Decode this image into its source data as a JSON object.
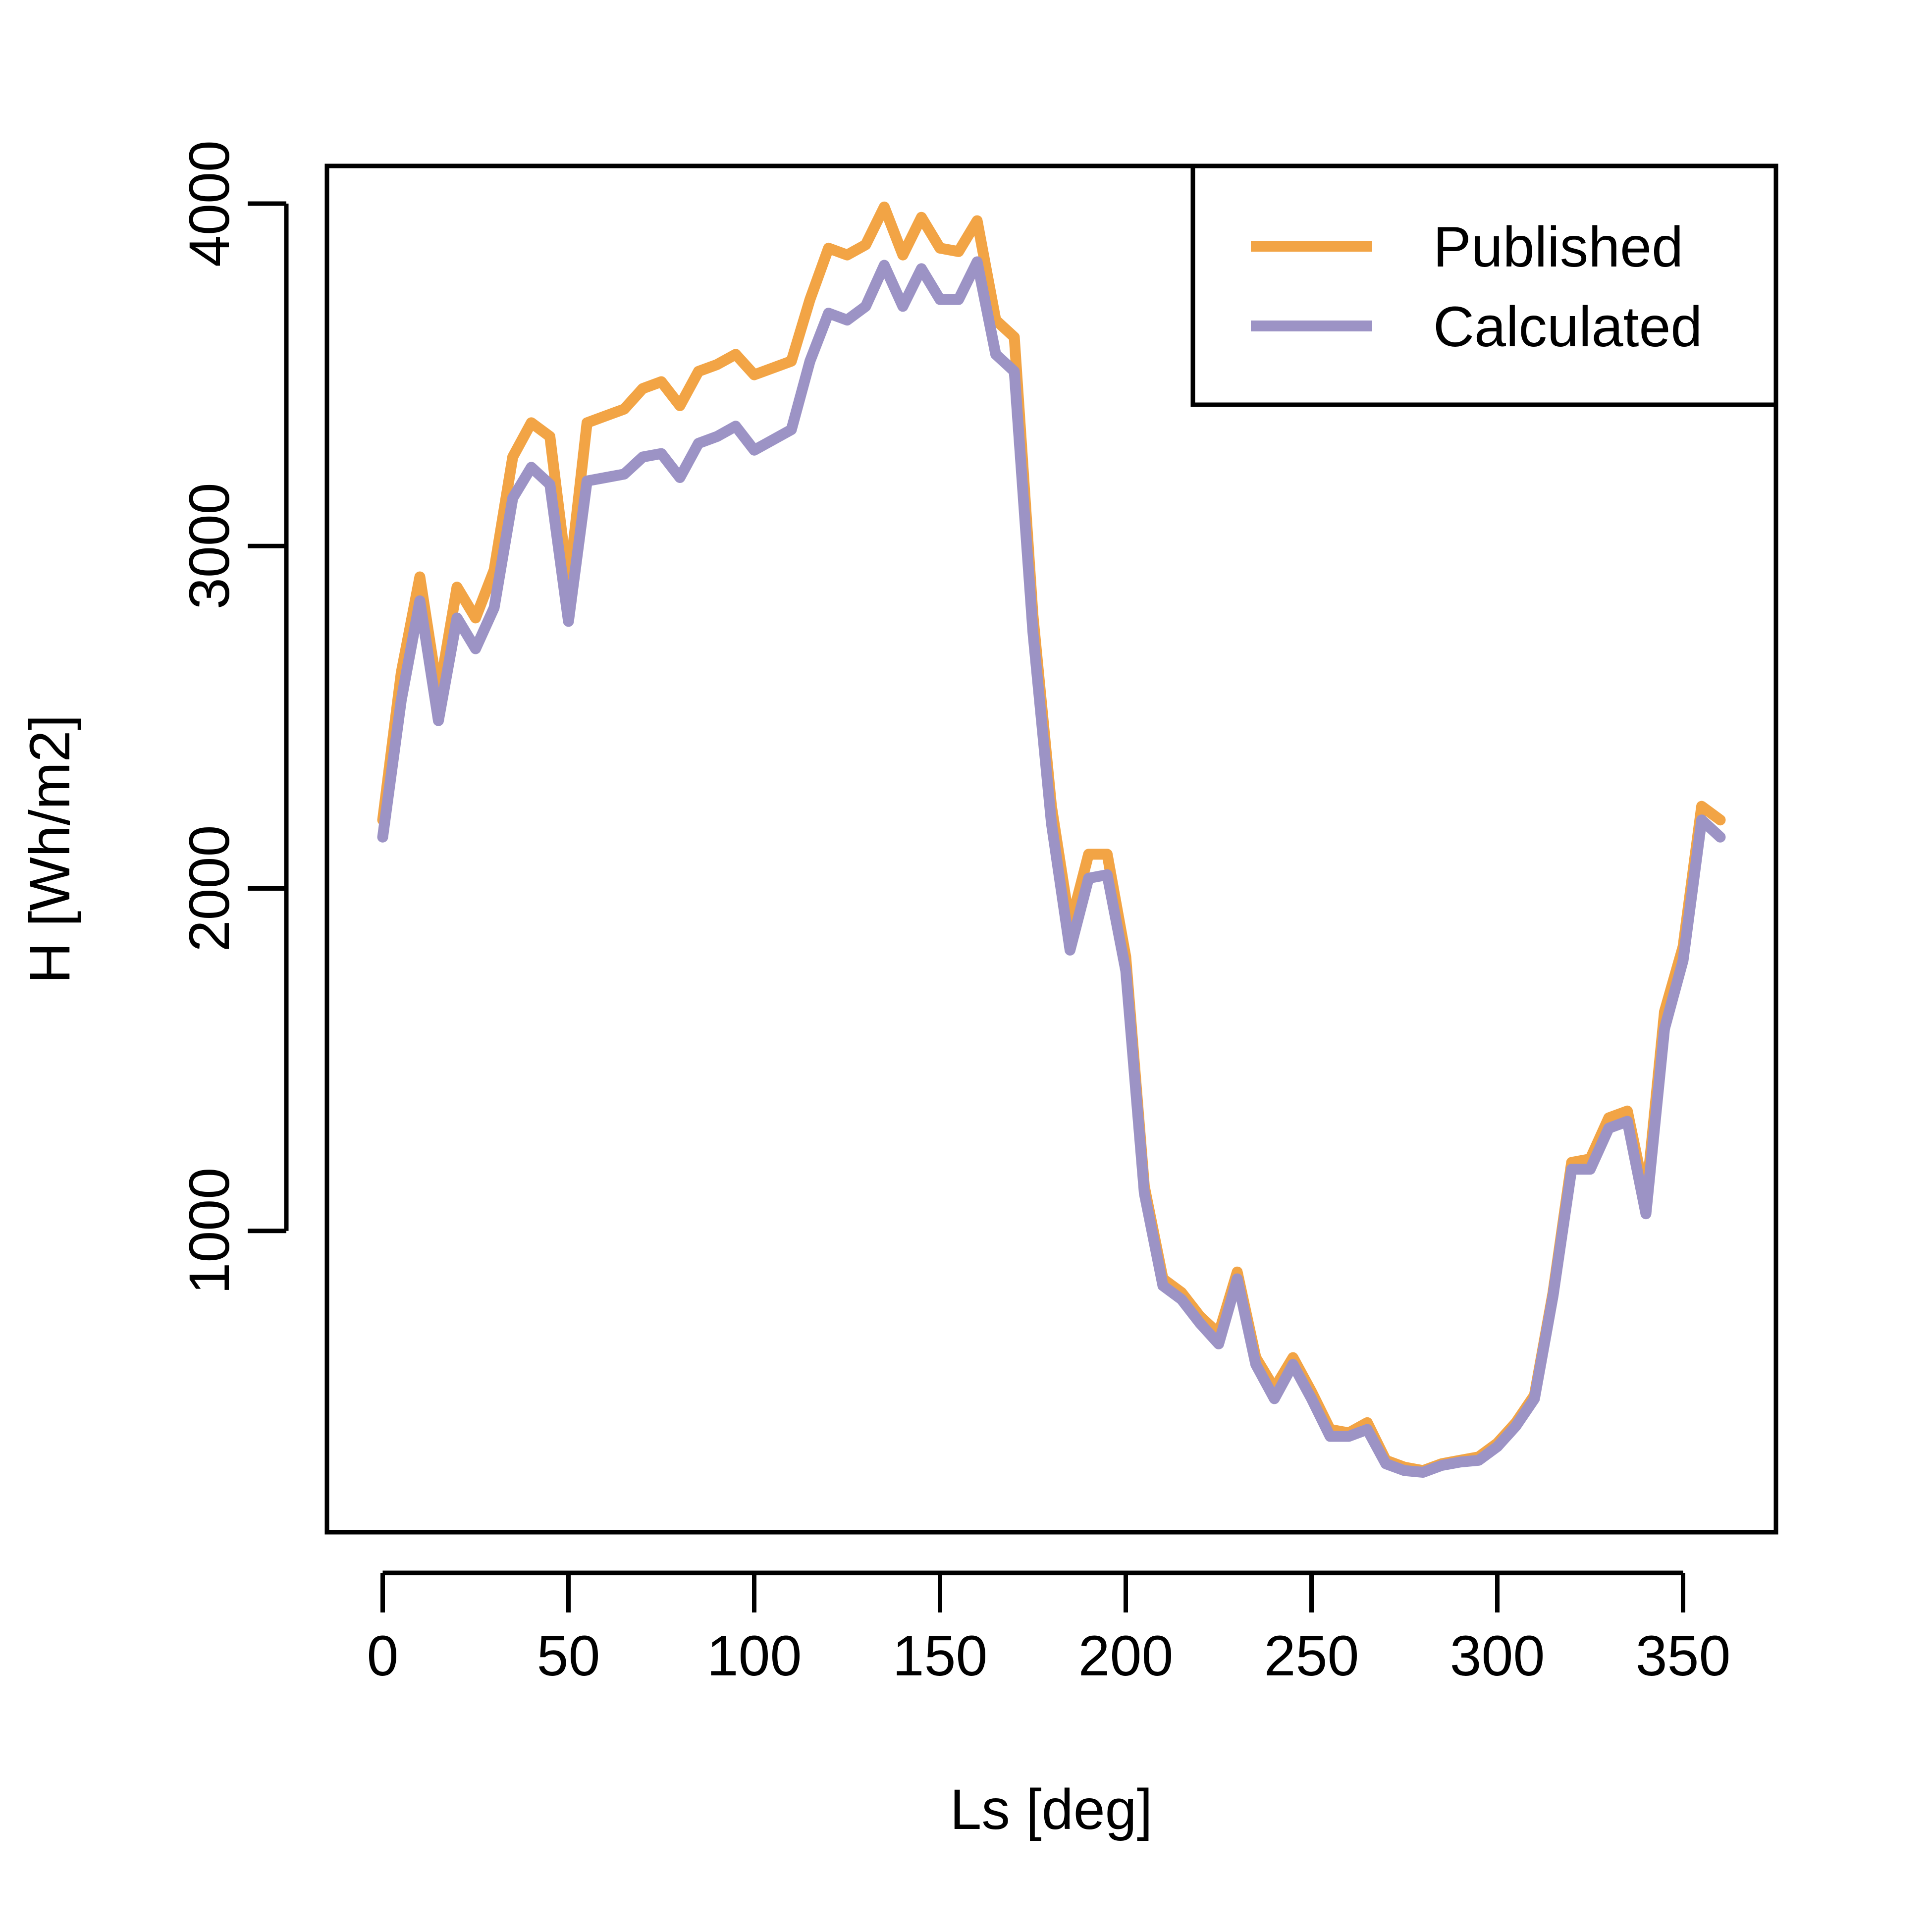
{
  "chart_data": {
    "type": "line",
    "xlabel": "Ls [deg]",
    "ylabel": "H [Wh/m2]",
    "xlim": [
      -15,
      375
    ],
    "ylim": [
      120,
      4110
    ],
    "x_ticks": [
      0,
      50,
      100,
      150,
      200,
      250,
      300,
      350
    ],
    "y_ticks": [
      1000,
      2000,
      3000,
      4000
    ],
    "legend_position": "top-right",
    "x": [
      0,
      5,
      10,
      15,
      20,
      25,
      30,
      35,
      40,
      45,
      50,
      55,
      60,
      65,
      70,
      75,
      80,
      85,
      90,
      95,
      100,
      105,
      110,
      115,
      120,
      125,
      130,
      135,
      140,
      145,
      150,
      155,
      160,
      165,
      170,
      175,
      180,
      185,
      190,
      195,
      200,
      205,
      210,
      215,
      220,
      225,
      230,
      235,
      240,
      245,
      250,
      255,
      260,
      265,
      270,
      275,
      280,
      285,
      290,
      295,
      300,
      305,
      310,
      315,
      320,
      325,
      330,
      335,
      340,
      345,
      350,
      355,
      360
    ],
    "series": [
      {
        "name": "Published",
        "color": "#F2A445",
        "values": [
          2200,
          2630,
          2910,
          2560,
          2880,
          2790,
          2930,
          3260,
          3360,
          3320,
          2880,
          3360,
          3380,
          3400,
          3460,
          3480,
          3410,
          3510,
          3530,
          3560,
          3500,
          3520,
          3540,
          3720,
          3870,
          3850,
          3880,
          3990,
          3850,
          3960,
          3870,
          3860,
          3950,
          3660,
          3610,
          2800,
          2240,
          1890,
          2100,
          2100,
          1800,
          1130,
          860,
          820,
          750,
          700,
          880,
          630,
          540,
          630,
          530,
          420,
          410,
          440,
          330,
          310,
          300,
          320,
          330,
          340,
          380,
          440,
          520,
          820,
          1200,
          1210,
          1330,
          1350,
          1090,
          1640,
          1830,
          2240,
          2200
        ]
      },
      {
        "name": "Calculated",
        "color": "#9C93C5",
        "values": [
          2150,
          2550,
          2840,
          2490,
          2790,
          2700,
          2820,
          3140,
          3230,
          3180,
          2780,
          3190,
          3200,
          3210,
          3260,
          3270,
          3200,
          3300,
          3320,
          3350,
          3280,
          3310,
          3340,
          3540,
          3680,
          3660,
          3700,
          3820,
          3700,
          3810,
          3720,
          3720,
          3830,
          3560,
          3510,
          2750,
          2190,
          1820,
          2030,
          2040,
          1760,
          1110,
          840,
          800,
          730,
          670,
          860,
          610,
          510,
          610,
          510,
          400,
          400,
          420,
          320,
          300,
          295,
          315,
          325,
          330,
          370,
          430,
          510,
          810,
          1180,
          1180,
          1300,
          1320,
          1050,
          1590,
          1790,
          2200,
          2150
        ]
      }
    ]
  }
}
